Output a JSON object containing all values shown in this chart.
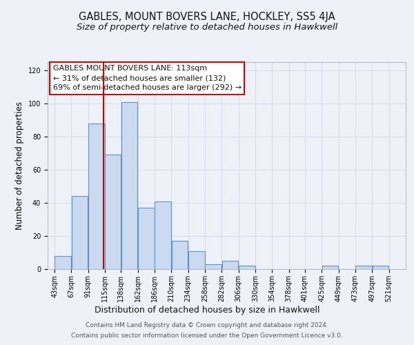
{
  "title": "GABLES, MOUNT BOVERS LANE, HOCKLEY, SS5 4JA",
  "subtitle": "Size of property relative to detached houses in Hawkwell",
  "xlabel": "Distribution of detached houses by size in Hawkwell",
  "ylabel": "Number of detached properties",
  "bar_left_edges": [
    43,
    67,
    91,
    115,
    138,
    162,
    186,
    210,
    234,
    258,
    282,
    306,
    330,
    354,
    378,
    401,
    425,
    449,
    473,
    497
  ],
  "bar_widths": [
    24,
    24,
    24,
    23,
    24,
    24,
    24,
    24,
    24,
    24,
    24,
    24,
    24,
    24,
    24,
    24,
    24,
    24,
    24,
    24
  ],
  "bar_heights": [
    8,
    44,
    88,
    69,
    101,
    37,
    41,
    17,
    11,
    3,
    5,
    2,
    0,
    0,
    0,
    0,
    2,
    0,
    2,
    2
  ],
  "tick_labels": [
    "43sqm",
    "67sqm",
    "91sqm",
    "115sqm",
    "138sqm",
    "162sqm",
    "186sqm",
    "210sqm",
    "234sqm",
    "258sqm",
    "282sqm",
    "306sqm",
    "330sqm",
    "354sqm",
    "378sqm",
    "401sqm",
    "425sqm",
    "449sqm",
    "473sqm",
    "497sqm",
    "521sqm"
  ],
  "bar_color": "#ccdaf0",
  "bar_edge_color": "#6090cc",
  "grid_color": "#d0d8e8",
  "vline_x": 113,
  "vline_color": "#cc0000",
  "annotation_title": "GABLES MOUNT BOVERS LANE: 113sqm",
  "annotation_line1": "← 31% of detached houses are smaller (132)",
  "annotation_line2": "69% of semi-detached houses are larger (292) →",
  "annotation_box_color": "#ffffff",
  "annotation_box_edge": "#cc0000",
  "ylim": [
    0,
    125
  ],
  "xlim_min": 33,
  "xlim_max": 545,
  "yticks": [
    0,
    20,
    40,
    60,
    80,
    100,
    120
  ],
  "footer1": "Contains HM Land Registry data © Crown copyright and database right 2024.",
  "footer2": "Contains public sector information licensed under the Open Government Licence v3.0.",
  "title_fontsize": 10.5,
  "subtitle_fontsize": 9.5,
  "xlabel_fontsize": 9,
  "ylabel_fontsize": 8.5,
  "tick_fontsize": 7,
  "annot_fontsize": 8,
  "footer_fontsize": 6.5,
  "background_color": "#eef2f8"
}
